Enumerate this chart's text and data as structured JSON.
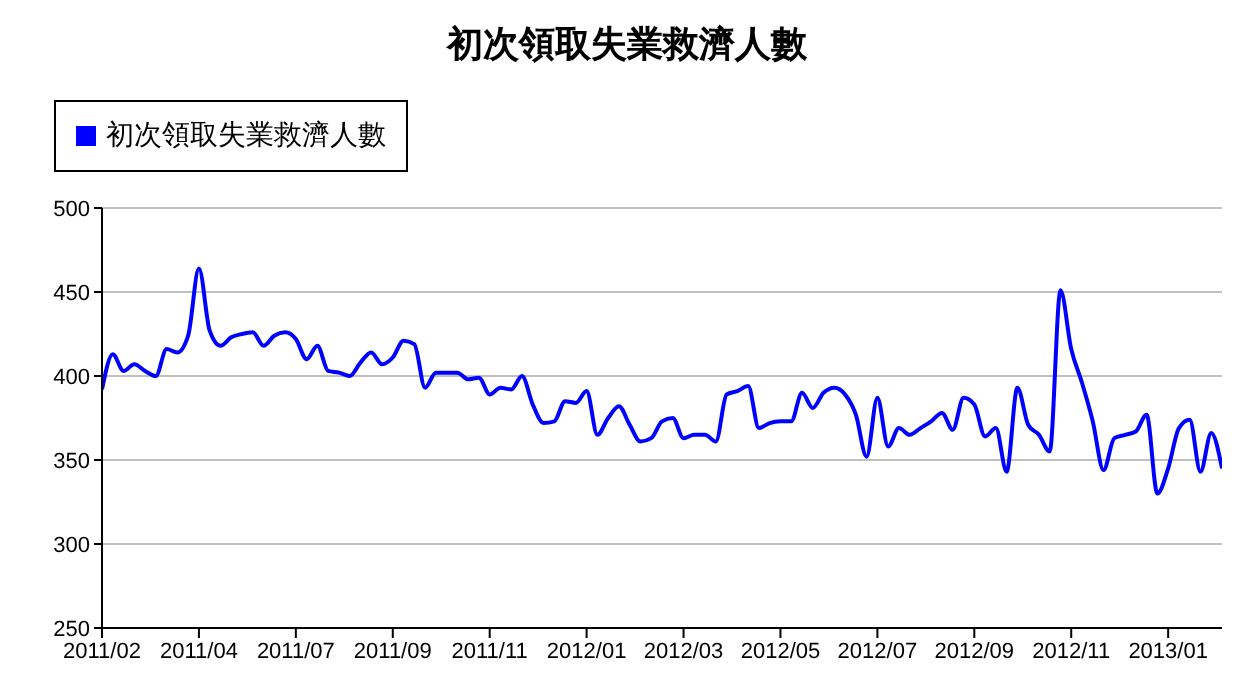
{
  "chart_data": {
    "type": "line",
    "title": "初次領取失業救濟人數",
    "categories": [
      "2011/02",
      null,
      null,
      null,
      null,
      null,
      null,
      null,
      null,
      "2011/04",
      null,
      null,
      null,
      null,
      null,
      null,
      null,
      null,
      "2011/07",
      null,
      null,
      null,
      null,
      null,
      null,
      null,
      null,
      "2011/09",
      null,
      null,
      null,
      null,
      null,
      null,
      null,
      null,
      "2011/11",
      null,
      null,
      null,
      null,
      null,
      null,
      null,
      null,
      "2012/01",
      null,
      null,
      null,
      null,
      null,
      null,
      null,
      null,
      "2012/03",
      null,
      null,
      null,
      null,
      null,
      null,
      null,
      null,
      "2012/05",
      null,
      null,
      null,
      null,
      null,
      null,
      null,
      null,
      "2012/07",
      null,
      null,
      null,
      null,
      null,
      null,
      null,
      null,
      "2012/09",
      null,
      null,
      null,
      null,
      null,
      null,
      null,
      null,
      "2012/11",
      null,
      null,
      null,
      null,
      null,
      null,
      null,
      null,
      "2013/01",
      null,
      null,
      null,
      null,
      null
    ],
    "series": [
      {
        "name": "初次領取失業救濟人數",
        "color": "#0000ff",
        "values": [
          392,
          413,
          403,
          407,
          403,
          400,
          416,
          414,
          424,
          464,
          427,
          418,
          423,
          425,
          426,
          418,
          424,
          426,
          422,
          410,
          418,
          403,
          402,
          400,
          408,
          414,
          407,
          411,
          421,
          419,
          393,
          402,
          402,
          402,
          398,
          399,
          389,
          393,
          392,
          400,
          383,
          372,
          373,
          385,
          384,
          391,
          365,
          375,
          382,
          371,
          361,
          363,
          373,
          375,
          363,
          365,
          365,
          361,
          389,
          391,
          394,
          369,
          372,
          373,
          373,
          390,
          381,
          390,
          393,
          389,
          377,
          352,
          387,
          358,
          369,
          365,
          369,
          373,
          378,
          368,
          387,
          383,
          364,
          369,
          343,
          393,
          371,
          365,
          355,
          451,
          416,
          396,
          373,
          344,
          363,
          365,
          367,
          377,
          330,
          345,
          369,
          374,
          343,
          366,
          345
        ]
      }
    ],
    "ylim": [
      250,
      500
    ],
    "yticks": [
      250,
      300,
      350,
      400,
      450,
      500
    ],
    "grid": "y",
    "legend": "top left",
    "marker": "none",
    "line_style": "solid"
  }
}
